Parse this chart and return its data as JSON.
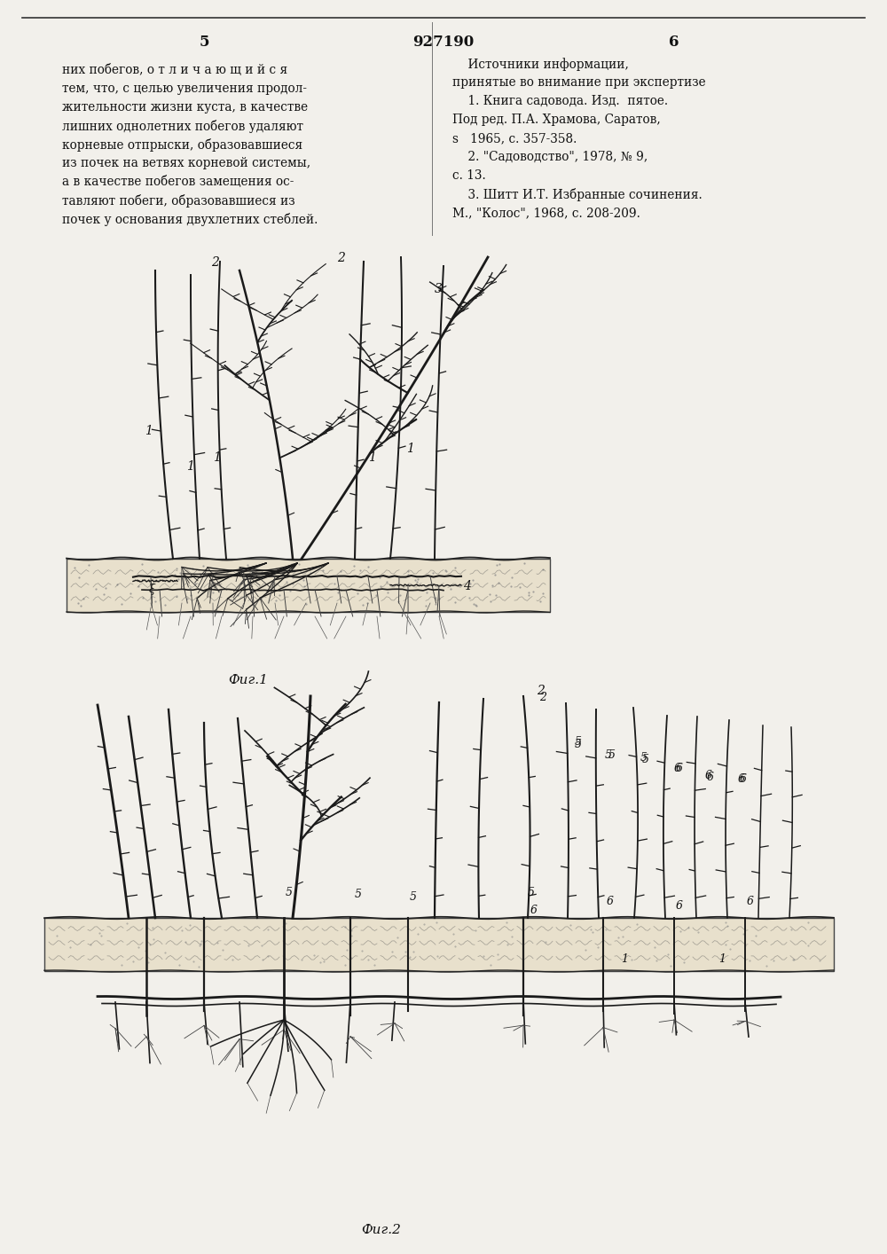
{
  "page_color": "#f2f0eb",
  "border_color": "#1a1a1a",
  "text_color": "#111111",
  "left_page_num": "5",
  "right_page_num": "6",
  "patent_num": "927190",
  "left_text_lines": [
    "них побегов, о т л и ч а ю щ и й с я",
    "тем, что, с целью увеличения продол-",
    "жительности жизни куста, в качестве",
    "лишних однолетних побегов удаляют",
    "корневые отпрыски, образовавшиеся",
    "из почек на ветвях корневой системы,",
    "а в качестве побегов замещения ос-",
    "тавляют побеги, образовавшиеся из",
    "почек у основания двухлетних стеблей."
  ],
  "right_text_lines": [
    "    Источники информации,",
    "принятые во внимание при экспертизе",
    "    1. Книга садовода. Изд.  пятое.",
    "Под ред. П.А. Храмова, Саратов,",
    "s   1965, с. 357-358.",
    "    2. \"Садоводство\", 1978, № 9,",
    "с. 13.",
    "    3. Шитт И.Т. Избранные сочинения.",
    "М., \"Колос\", 1968, с. 208-209."
  ],
  "fig1_caption": "Фиг.1",
  "fig2_caption": "Фиг.2"
}
